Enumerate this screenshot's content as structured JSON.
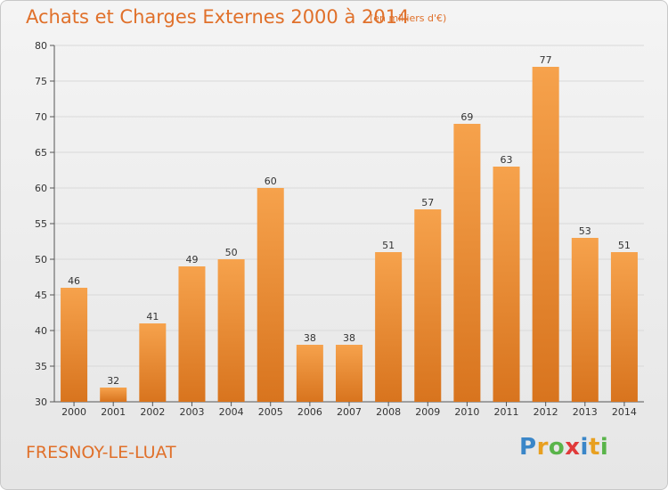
{
  "header": {
    "title": "Achats et Charges Externes 2000 à 2014",
    "unit": "(en milliers d'€)"
  },
  "footer": {
    "commune": "FRESNOY-LE-LUAT",
    "logo_letters": [
      "P",
      "r",
      "o",
      "x",
      "i",
      "t",
      "i"
    ],
    "logo_colors": [
      "#3a86c8",
      "#e8a020",
      "#59b44a",
      "#e03a3a",
      "#3a86c8",
      "#e8a020",
      "#59b44a"
    ]
  },
  "colors": {
    "accent": "#e0702a",
    "bar_top": "#f6a24c",
    "bar_bottom": "#d8741e",
    "grid": "#d9d9d9"
  },
  "chart_data": {
    "type": "bar",
    "title": "Achats et Charges Externes 2000 à 2014",
    "xlabel": "",
    "ylabel": "",
    "categories": [
      "2000",
      "2001",
      "2002",
      "2003",
      "2004",
      "2005",
      "2006",
      "2007",
      "2008",
      "2009",
      "2010",
      "2011",
      "2012",
      "2013",
      "2014"
    ],
    "values": [
      46,
      32,
      41,
      49,
      50,
      60,
      38,
      38,
      51,
      57,
      69,
      63,
      77,
      53,
      51
    ],
    "ylim": [
      30,
      80
    ],
    "yticks": [
      30,
      35,
      40,
      45,
      50,
      55,
      60,
      65,
      70,
      75,
      80
    ],
    "grid": true,
    "legend": "none"
  }
}
